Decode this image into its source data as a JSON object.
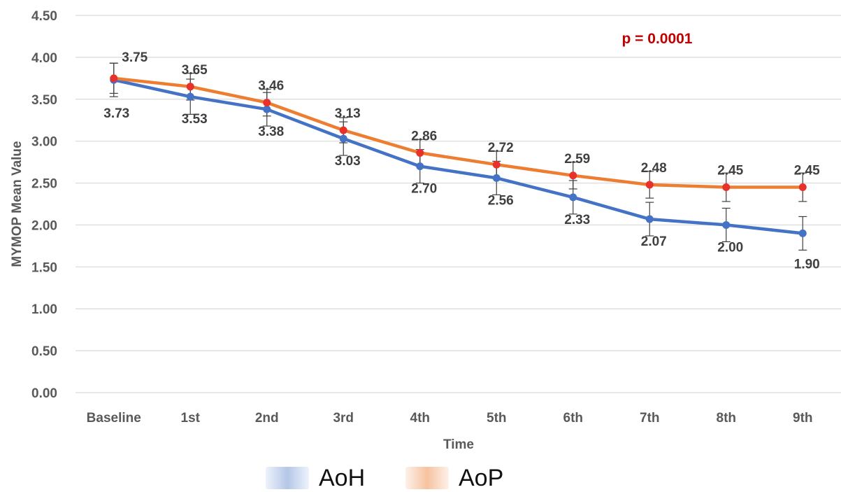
{
  "chart_data": {
    "type": "line",
    "categories": [
      "Baseline",
      "1st",
      "2nd",
      "3rd",
      "4th",
      "5th",
      "6th",
      "7th",
      "8th",
      "9th"
    ],
    "series": [
      {
        "name": "AoH",
        "color": "#4472C4",
        "values": [
          3.73,
          3.53,
          3.38,
          3.03,
          2.7,
          2.56,
          2.33,
          2.07,
          2.0,
          1.9
        ],
        "labels": [
          "3.73",
          "3.53",
          "3.38",
          "3.03",
          "2.70",
          "2.56",
          "2.33",
          "2.07",
          "2.00",
          "1.90"
        ],
        "error": [
          0.2,
          0.21,
          0.2,
          0.2,
          0.2,
          0.2,
          0.2,
          0.2,
          0.2,
          0.2
        ]
      },
      {
        "name": "AoP",
        "color": "#ED7D31",
        "marker_color": "#E8312A",
        "values": [
          3.75,
          3.65,
          3.46,
          3.13,
          2.86,
          2.72,
          2.59,
          2.48,
          2.45,
          2.45
        ],
        "labels": [
          "3.75",
          "3.65",
          "3.46",
          "3.13",
          "2.86",
          "2.72",
          "2.59",
          "2.48",
          "2.45",
          "2.45"
        ],
        "error": [
          0.18,
          0.16,
          0.16,
          0.15,
          0.16,
          0.16,
          0.16,
          0.16,
          0.17,
          0.17
        ]
      }
    ],
    "xlabel": "Time",
    "ylabel": "MYMOP Mean Value",
    "ylim": [
      0,
      4.5
    ],
    "yticks": [
      "0.00",
      "0.50",
      "1.00",
      "1.50",
      "2.00",
      "2.50",
      "3.00",
      "3.50",
      "4.00",
      "4.50"
    ],
    "grid": true,
    "legend_position": "bottom",
    "annotation": {
      "text": "p = 0.0001",
      "color": "#C00000"
    }
  },
  "legend": [
    {
      "label": "AoH",
      "color": "#4472C4"
    },
    {
      "label": "AoP",
      "color": "#ED7D31"
    }
  ]
}
